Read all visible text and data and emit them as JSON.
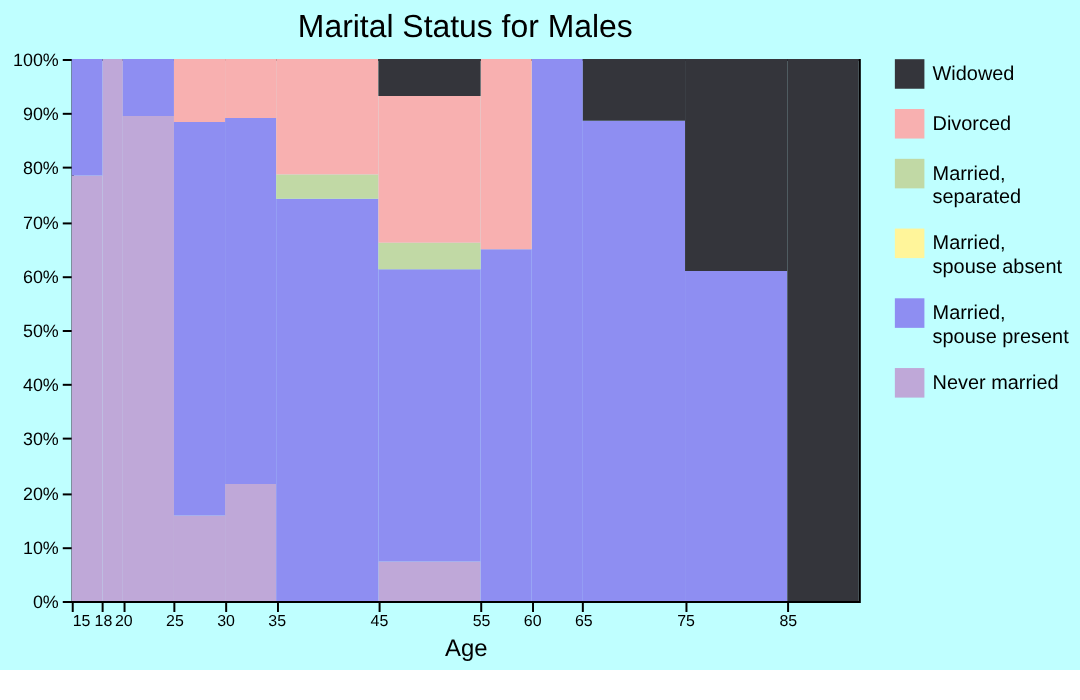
{
  "chart_data": {
    "type": "bar",
    "stacked": true,
    "title": "Marital Status for Males",
    "xlabel": "Age",
    "x": [
      16.5,
      19,
      22.5,
      27.5,
      32.5,
      40,
      50,
      57.5,
      62.5,
      70,
      80,
      88.5
    ],
    "xlim": [
      15,
      92
    ],
    "xticks": [
      15,
      18,
      20,
      25,
      30,
      35,
      45,
      55,
      60,
      65,
      75,
      85
    ],
    "ylim": [
      0,
      100
    ],
    "yticks": [
      {
        "value": 0,
        "label": "0%"
      },
      {
        "value": 10,
        "label": "10%"
      },
      {
        "value": 20,
        "label": "20%"
      },
      {
        "value": 30,
        "label": "30%"
      },
      {
        "value": 40,
        "label": "40%"
      },
      {
        "value": 50,
        "label": "50%"
      },
      {
        "value": 60,
        "label": "60%"
      },
      {
        "value": 70,
        "label": "70%"
      },
      {
        "value": 80,
        "label": "80%"
      },
      {
        "value": 90,
        "label": "90%"
      },
      {
        "value": 100,
        "label": "100%"
      }
    ],
    "legend": "right",
    "grid": false,
    "series": [
      {
        "name": "Never married",
        "color": "#bfa8d8",
        "values": [
          78.5,
          100,
          89.5,
          15.8,
          21.6,
          0,
          7.3,
          0,
          0,
          0,
          0,
          0
        ]
      },
      {
        "name": "Married, spouse present",
        "color": "#8e8ef2",
        "values": [
          21.5,
          0,
          10.5,
          72.6,
          67.5,
          74.2,
          53.9,
          64.9,
          100,
          88.6,
          60.9,
          0
        ]
      },
      {
        "name": "Married, spouse absent",
        "color": "#fff59a",
        "values": [
          0,
          0,
          0,
          0,
          0,
          0,
          0,
          0,
          0,
          0,
          0,
          0
        ]
      },
      {
        "name": "Married, separated",
        "color": "#c1d9a5",
        "values": [
          0,
          0,
          0,
          0,
          0,
          4.5,
          4.9,
          0,
          0,
          0,
          0,
          0
        ]
      },
      {
        "name": "Divorced",
        "color": "#f8b0b0",
        "values": [
          0,
          0,
          0,
          11.6,
          10.9,
          21.3,
          27.1,
          35.1,
          0,
          0,
          0,
          0
        ]
      },
      {
        "name": "Widowed",
        "color": "#34353b",
        "values": [
          0,
          0,
          0,
          0,
          0,
          0,
          6.8,
          0,
          0,
          11.4,
          39.1,
          100
        ]
      }
    ]
  }
}
